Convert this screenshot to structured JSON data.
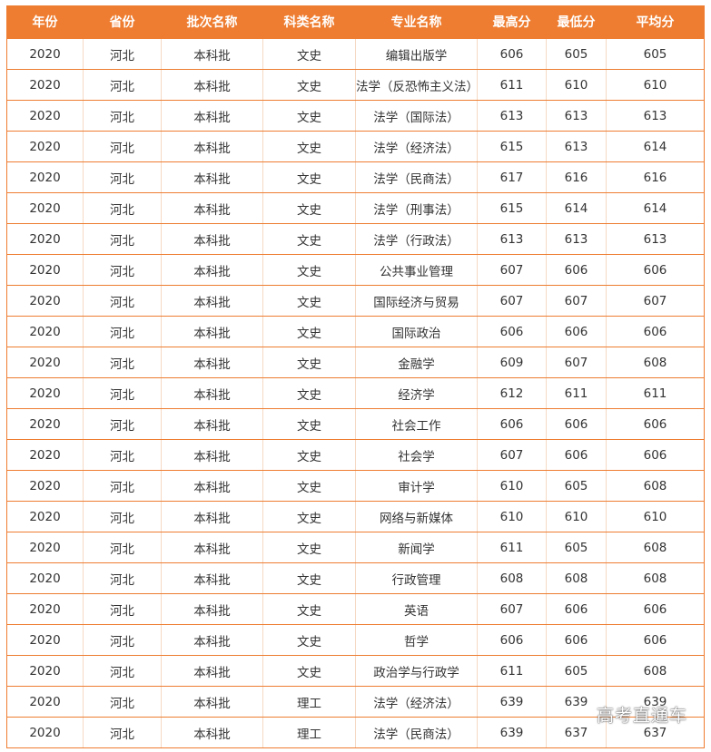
{
  "table": {
    "headers": [
      "年份",
      "省份",
      "批次名称",
      "科类名称",
      "专业名称",
      "最高分",
      "最低分",
      "平均分"
    ],
    "rows": [
      [
        "2020",
        "河北",
        "本科批",
        "文史",
        "编辑出版学",
        "606",
        "605",
        "605"
      ],
      [
        "2020",
        "河北",
        "本科批",
        "文史",
        "法学（反恐怖主义法）",
        "611",
        "610",
        "610"
      ],
      [
        "2020",
        "河北",
        "本科批",
        "文史",
        "法学（国际法）",
        "613",
        "613",
        "613"
      ],
      [
        "2020",
        "河北",
        "本科批",
        "文史",
        "法学（经济法）",
        "615",
        "613",
        "614"
      ],
      [
        "2020",
        "河北",
        "本科批",
        "文史",
        "法学（民商法）",
        "617",
        "616",
        "616"
      ],
      [
        "2020",
        "河北",
        "本科批",
        "文史",
        "法学（刑事法）",
        "615",
        "614",
        "614"
      ],
      [
        "2020",
        "河北",
        "本科批",
        "文史",
        "法学（行政法）",
        "613",
        "613",
        "613"
      ],
      [
        "2020",
        "河北",
        "本科批",
        "文史",
        "公共事业管理",
        "607",
        "606",
        "606"
      ],
      [
        "2020",
        "河北",
        "本科批",
        "文史",
        "国际经济与贸易",
        "607",
        "607",
        "607"
      ],
      [
        "2020",
        "河北",
        "本科批",
        "文史",
        "国际政治",
        "606",
        "606",
        "606"
      ],
      [
        "2020",
        "河北",
        "本科批",
        "文史",
        "金融学",
        "609",
        "607",
        "608"
      ],
      [
        "2020",
        "河北",
        "本科批",
        "文史",
        "经济学",
        "612",
        "611",
        "611"
      ],
      [
        "2020",
        "河北",
        "本科批",
        "文史",
        "社会工作",
        "606",
        "606",
        "606"
      ],
      [
        "2020",
        "河北",
        "本科批",
        "文史",
        "社会学",
        "607",
        "606",
        "606"
      ],
      [
        "2020",
        "河北",
        "本科批",
        "文史",
        "审计学",
        "610",
        "605",
        "608"
      ],
      [
        "2020",
        "河北",
        "本科批",
        "文史",
        "网络与新媒体",
        "610",
        "610",
        "610"
      ],
      [
        "2020",
        "河北",
        "本科批",
        "文史",
        "新闻学",
        "611",
        "605",
        "608"
      ],
      [
        "2020",
        "河北",
        "本科批",
        "文史",
        "行政管理",
        "608",
        "608",
        "608"
      ],
      [
        "2020",
        "河北",
        "本科批",
        "文史",
        "英语",
        "607",
        "606",
        "606"
      ],
      [
        "2020",
        "河北",
        "本科批",
        "文史",
        "哲学",
        "606",
        "606",
        "606"
      ],
      [
        "2020",
        "河北",
        "本科批",
        "文史",
        "政治学与行政学",
        "611",
        "605",
        "608"
      ],
      [
        "2020",
        "河北",
        "本科批",
        "理工",
        "法学（经济法）",
        "639",
        "639",
        "639"
      ],
      [
        "2020",
        "河北",
        "本科批",
        "理工",
        "法学（民商法）",
        "639",
        "637",
        "637"
      ]
    ]
  },
  "watermark": "高考直通车",
  "colors": {
    "header_bg": "#ee7d31",
    "header_text": "#ffffff",
    "row_border": "#ee7d31",
    "cell_text": "#333333"
  }
}
